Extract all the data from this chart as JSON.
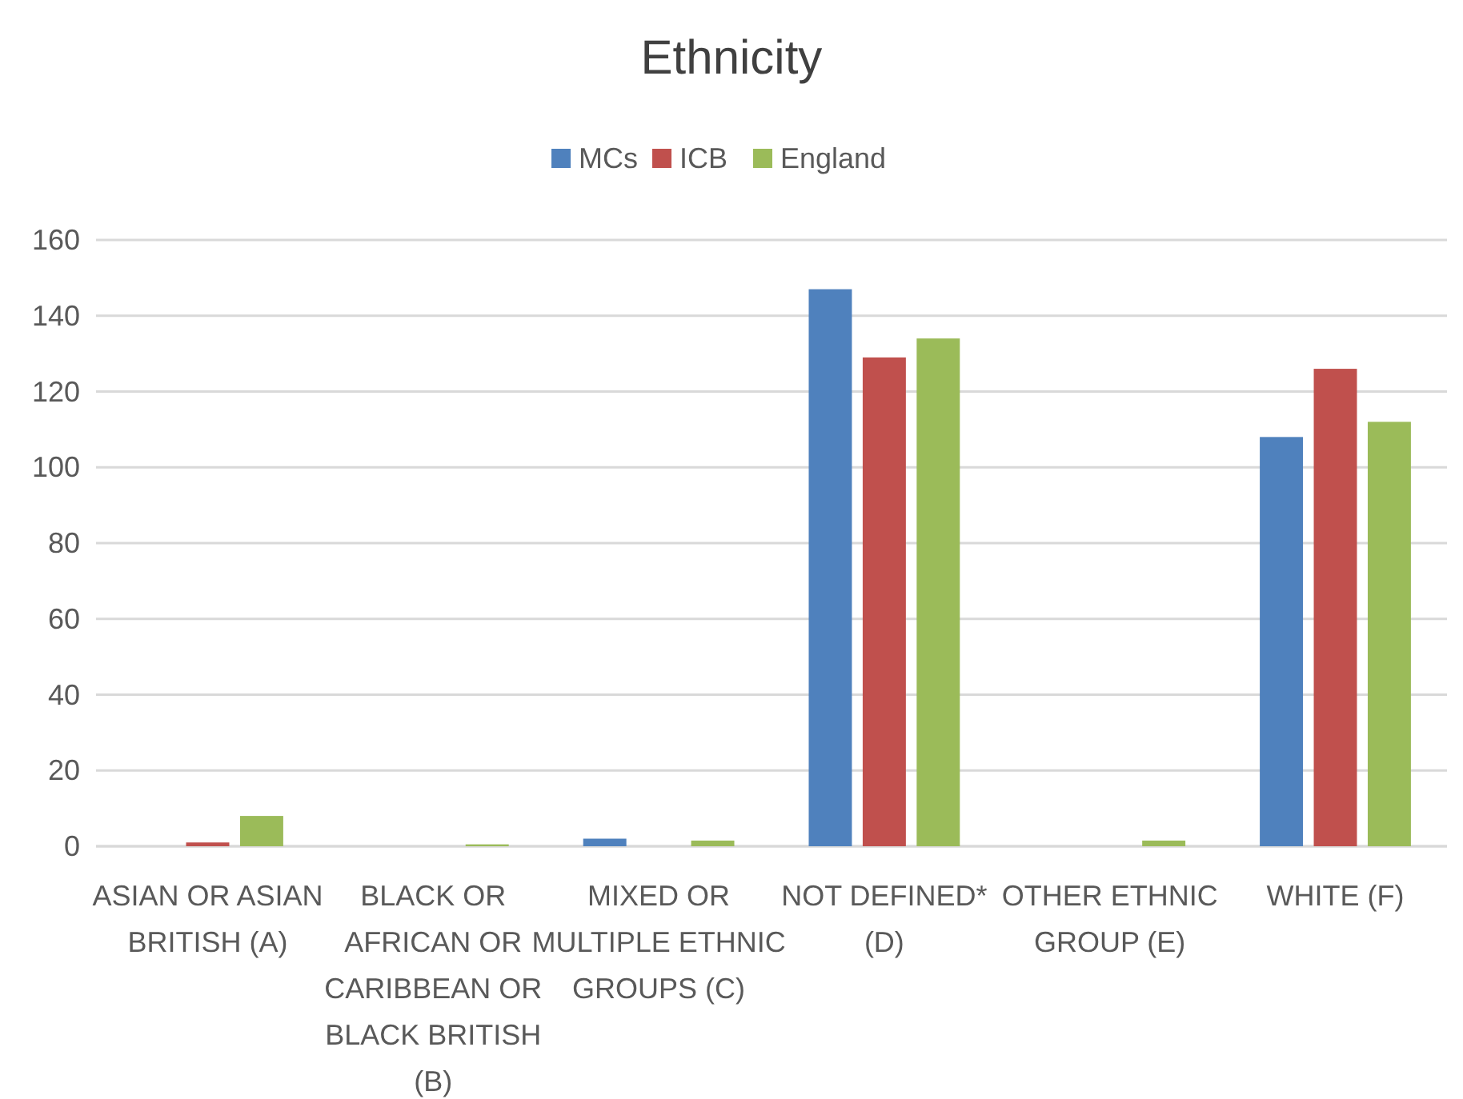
{
  "chart_data": {
    "type": "bar",
    "title": "Ethnicity",
    "categories": [
      "ASIAN OR ASIAN BRITISH (A)",
      "BLACK OR AFRICAN OR CARIBBEAN OR BLACK BRITISH (B)",
      "MIXED OR MULTIPLE ETHNIC GROUPS (C)",
      "NOT DEFINED* (D)",
      "OTHER ETHNIC GROUP (E)",
      "WHITE (F)"
    ],
    "series": [
      {
        "name": "MCs",
        "color": "#4f81bd",
        "values": [
          0,
          0,
          2,
          147,
          0,
          108
        ]
      },
      {
        "name": "ICB",
        "color": "#c0504d",
        "values": [
          1,
          0,
          0,
          129,
          0,
          126
        ]
      },
      {
        "name": "England",
        "color": "#9bbb59",
        "values": [
          8,
          0.5,
          1.5,
          134,
          1.5,
          112
        ]
      }
    ],
    "ylim": [
      0,
      160
    ],
    "yticks": [
      0,
      20,
      40,
      60,
      80,
      100,
      120,
      140,
      160
    ],
    "grid": "y",
    "legend": "top"
  }
}
